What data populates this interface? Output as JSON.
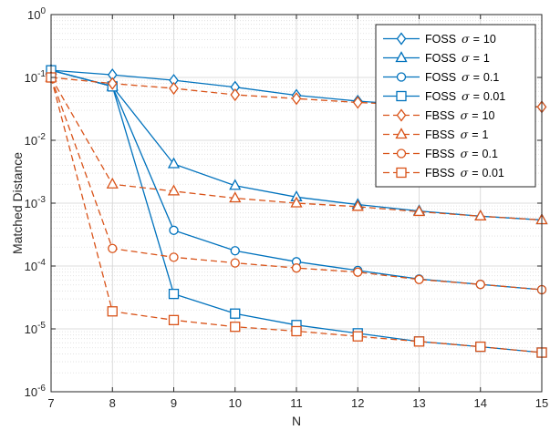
{
  "chart_data": {
    "type": "line",
    "xlabel": "N",
    "ylabel": "Matched Distance",
    "yscale": "log",
    "xlim": [
      7,
      15
    ],
    "ylim": [
      1e-06,
      1
    ],
    "x_ticks": [
      7,
      8,
      9,
      10,
      11,
      12,
      13,
      14,
      15
    ],
    "y_ticks": [
      {
        "value": 1,
        "base": "10",
        "exp": "0"
      },
      {
        "value": 0.1,
        "base": "10",
        "exp": "-1"
      },
      {
        "value": 0.01,
        "base": "10",
        "exp": "-2"
      },
      {
        "value": 0.001,
        "base": "10",
        "exp": "-3"
      },
      {
        "value": 0.0001,
        "base": "10",
        "exp": "-4"
      },
      {
        "value": 1e-05,
        "base": "10",
        "exp": "-5"
      },
      {
        "value": 1e-06,
        "base": "10",
        "exp": "-6"
      }
    ],
    "grid": true,
    "minor_grid": true,
    "legend_position": "top-right",
    "colors": {
      "FOSS": "#0072BD",
      "FBSS": "#D95319"
    },
    "x": [
      7,
      8,
      9,
      10,
      11,
      12,
      13,
      14,
      15
    ],
    "series": [
      {
        "method": "FOSS",
        "sigma": "10",
        "marker": "diamond",
        "dash": false,
        "values": [
          0.13,
          0.11,
          0.09,
          0.07,
          0.052,
          0.042,
          0.036,
          0.034,
          0.034
        ]
      },
      {
        "method": "FOSS",
        "sigma": "1",
        "marker": "triangle",
        "dash": false,
        "values": [
          0.13,
          0.072,
          0.0042,
          0.0019,
          0.00125,
          0.00095,
          0.00075,
          0.00062,
          0.00054
        ]
      },
      {
        "method": "FOSS",
        "sigma": "0.1",
        "marker": "circle",
        "dash": false,
        "values": [
          0.13,
          0.072,
          0.00037,
          0.000175,
          0.000117,
          8.5e-05,
          6.2e-05,
          5.1e-05,
          4.2e-05
        ]
      },
      {
        "method": "FOSS",
        "sigma": "0.01",
        "marker": "square",
        "dash": false,
        "values": [
          0.13,
          0.072,
          3.6e-05,
          1.75e-05,
          1.15e-05,
          8.5e-06,
          6.3e-06,
          5.2e-06,
          4.2e-06
        ]
      },
      {
        "method": "FBSS",
        "sigma": "10",
        "marker": "diamond",
        "dash": true,
        "values": [
          0.1,
          0.08,
          0.067,
          0.053,
          0.046,
          0.04,
          0.036,
          0.034,
          0.034
        ]
      },
      {
        "method": "FBSS",
        "sigma": "1",
        "marker": "triangle",
        "dash": true,
        "values": [
          0.1,
          0.002,
          0.00155,
          0.0012,
          0.001,
          0.00088,
          0.00073,
          0.00062,
          0.00054
        ]
      },
      {
        "method": "FBSS",
        "sigma": "0.1",
        "marker": "circle",
        "dash": true,
        "values": [
          0.1,
          0.00019,
          0.000138,
          0.000112,
          9.3e-05,
          8e-05,
          6.1e-05,
          5.1e-05,
          4.2e-05
        ]
      },
      {
        "method": "FBSS",
        "sigma": "0.01",
        "marker": "square",
        "dash": true,
        "values": [
          0.1,
          1.9e-05,
          1.38e-05,
          1.08e-05,
          9.2e-06,
          7.6e-06,
          6.3e-06,
          5.2e-06,
          4.2e-06
        ]
      }
    ],
    "legend": [
      {
        "method": "FOSS",
        "sigma_symbol": "σ",
        "equals": "=",
        "sigma_value": "10"
      },
      {
        "method": "FOSS",
        "sigma_symbol": "σ",
        "equals": "=",
        "sigma_value": "1"
      },
      {
        "method": "FOSS",
        "sigma_symbol": "σ",
        "equals": "=",
        "sigma_value": "0.1"
      },
      {
        "method": "FOSS",
        "sigma_symbol": "σ",
        "equals": "=",
        "sigma_value": "0.01"
      },
      {
        "method": "FBSS",
        "sigma_symbol": "σ",
        "equals": "=",
        "sigma_value": "10"
      },
      {
        "method": "FBSS",
        "sigma_symbol": "σ",
        "equals": "=",
        "sigma_value": "1"
      },
      {
        "method": "FBSS",
        "sigma_symbol": "σ",
        "equals": "=",
        "sigma_value": "0.1"
      },
      {
        "method": "FBSS",
        "sigma_symbol": "σ",
        "equals": "=",
        "sigma_value": "0.01"
      }
    ]
  }
}
